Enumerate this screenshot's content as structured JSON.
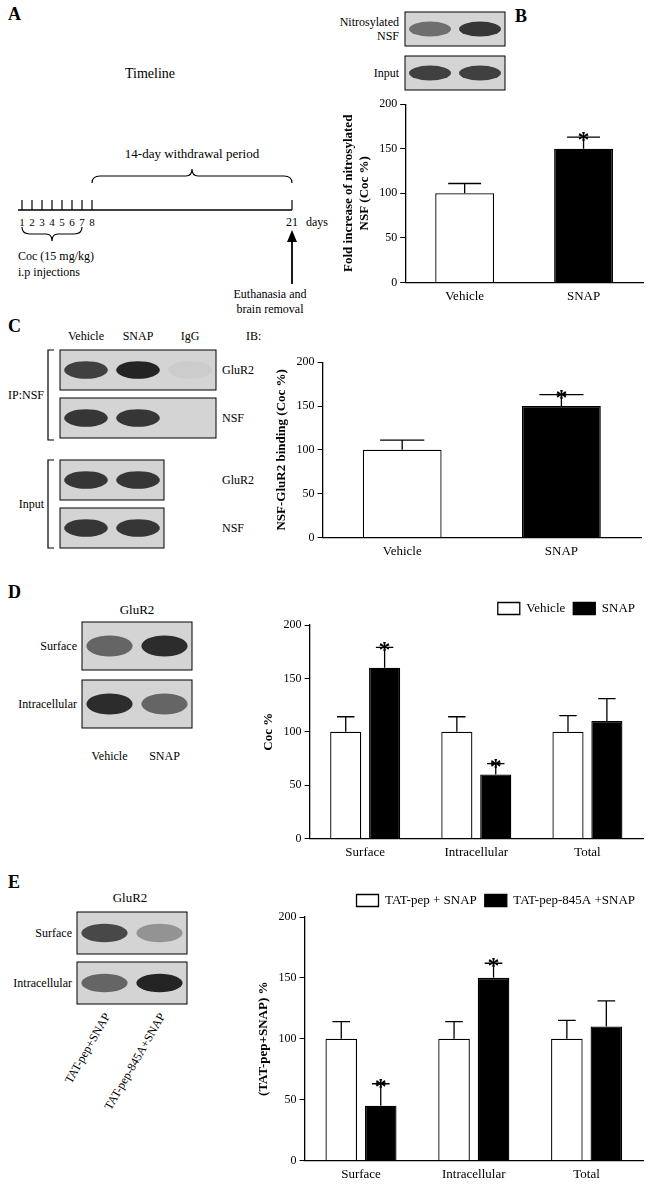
{
  "panel_labels": [
    "A",
    "B",
    "C",
    "D",
    "E"
  ],
  "timeline": {
    "title": "Timeline",
    "period_label": "14-day withdrawal period",
    "injection_days": [
      1,
      2,
      3,
      4,
      5,
      6,
      7,
      8
    ],
    "end_day": 21,
    "unit": "days",
    "injection_label": [
      "Coc (15 mg/kg)",
      "i.p injections"
    ],
    "end_label": [
      "Euthanasia and",
      "brain removal"
    ]
  },
  "blots": {
    "B": {
      "rows": [
        [
          "Nitrosylated",
          "NSF"
        ],
        [
          "Input"
        ]
      ]
    },
    "C": {
      "columns": [
        "Vehicle",
        "SNAP",
        "IgG"
      ],
      "header": "IB:",
      "groups": [
        {
          "label": "IP:NSF",
          "rows": [
            "GluR2",
            "NSF"
          ]
        },
        {
          "label": "Input",
          "rows": [
            "GluR2",
            "NSF"
          ]
        }
      ]
    },
    "D": {
      "title": "GluR2",
      "rows": [
        "Surface",
        "Intracellular"
      ],
      "columns": [
        "Vehicle",
        "SNAP"
      ]
    },
    "E": {
      "title": "GluR2",
      "rows": [
        "Surface",
        "Intracellular"
      ],
      "columns": [
        "TAT-pep+SNAP",
        "TAT-pep-845A+SNAP"
      ]
    }
  },
  "chart_data": [
    {
      "type": "bar",
      "categories": [
        "Vehicle",
        "SNAP"
      ],
      "values": [
        100,
        150
      ],
      "errors": [
        11,
        13
      ],
      "colors": [
        "#ffffff",
        "#000000"
      ],
      "significance": [
        null,
        "*"
      ],
      "y_label": [
        "Fold increase of nitrosylated",
        "NSF (Coc %)"
      ],
      "ylim": [
        0,
        200
      ],
      "yticks": [
        0,
        50,
        100,
        150,
        200
      ],
      "grid": false
    },
    {
      "type": "bar",
      "categories": [
        "Vehicle",
        "SNAP"
      ],
      "values": [
        100,
        150
      ],
      "errors": [
        11,
        13
      ],
      "colors": [
        "#ffffff",
        "#000000"
      ],
      "significance": [
        null,
        "*"
      ],
      "y_label": "NSF-GluR2 binding (Coc %)",
      "ylim": [
        0,
        200
      ],
      "yticks": [
        0,
        50,
        100,
        150,
        200
      ],
      "grid": false
    },
    {
      "type": "bar",
      "categories": [
        "Surface",
        "Intracellular",
        "Total"
      ],
      "series": [
        {
          "name": "Vehicle",
          "color": "#ffffff",
          "values": [
            100,
            100,
            100
          ],
          "errors": [
            14,
            14,
            15
          ],
          "significance": [
            null,
            null,
            null
          ]
        },
        {
          "name": "SNAP",
          "color": "#000000",
          "values": [
            160,
            60,
            110
          ],
          "errors": [
            19,
            10,
            21
          ],
          "significance": [
            "*",
            "*",
            null
          ]
        }
      ],
      "y_label": "Coc %",
      "ylim": [
        0,
        200
      ],
      "yticks": [
        0,
        50,
        100,
        150,
        200
      ],
      "grid": false,
      "legend": "top-right"
    },
    {
      "type": "bar",
      "categories": [
        "Surface",
        "Intracellular",
        "Total"
      ],
      "series": [
        {
          "name": "TAT-pep + SNAP",
          "color": "#ffffff",
          "values": [
            100,
            100,
            100
          ],
          "errors": [
            14,
            14,
            15
          ],
          "significance": [
            null,
            null,
            null
          ]
        },
        {
          "name": "TAT-pep-845A +SNAP",
          "color": "#000000",
          "values": [
            45,
            150,
            110
          ],
          "errors": [
            18,
            12,
            21
          ],
          "significance": [
            "*",
            "*",
            null
          ]
        }
      ],
      "y_label": "(TAT-pep+SNAP) %",
      "ylim": [
        0,
        200
      ],
      "yticks": [
        0,
        50,
        100,
        150,
        200
      ],
      "grid": false,
      "legend": "top-right"
    }
  ]
}
